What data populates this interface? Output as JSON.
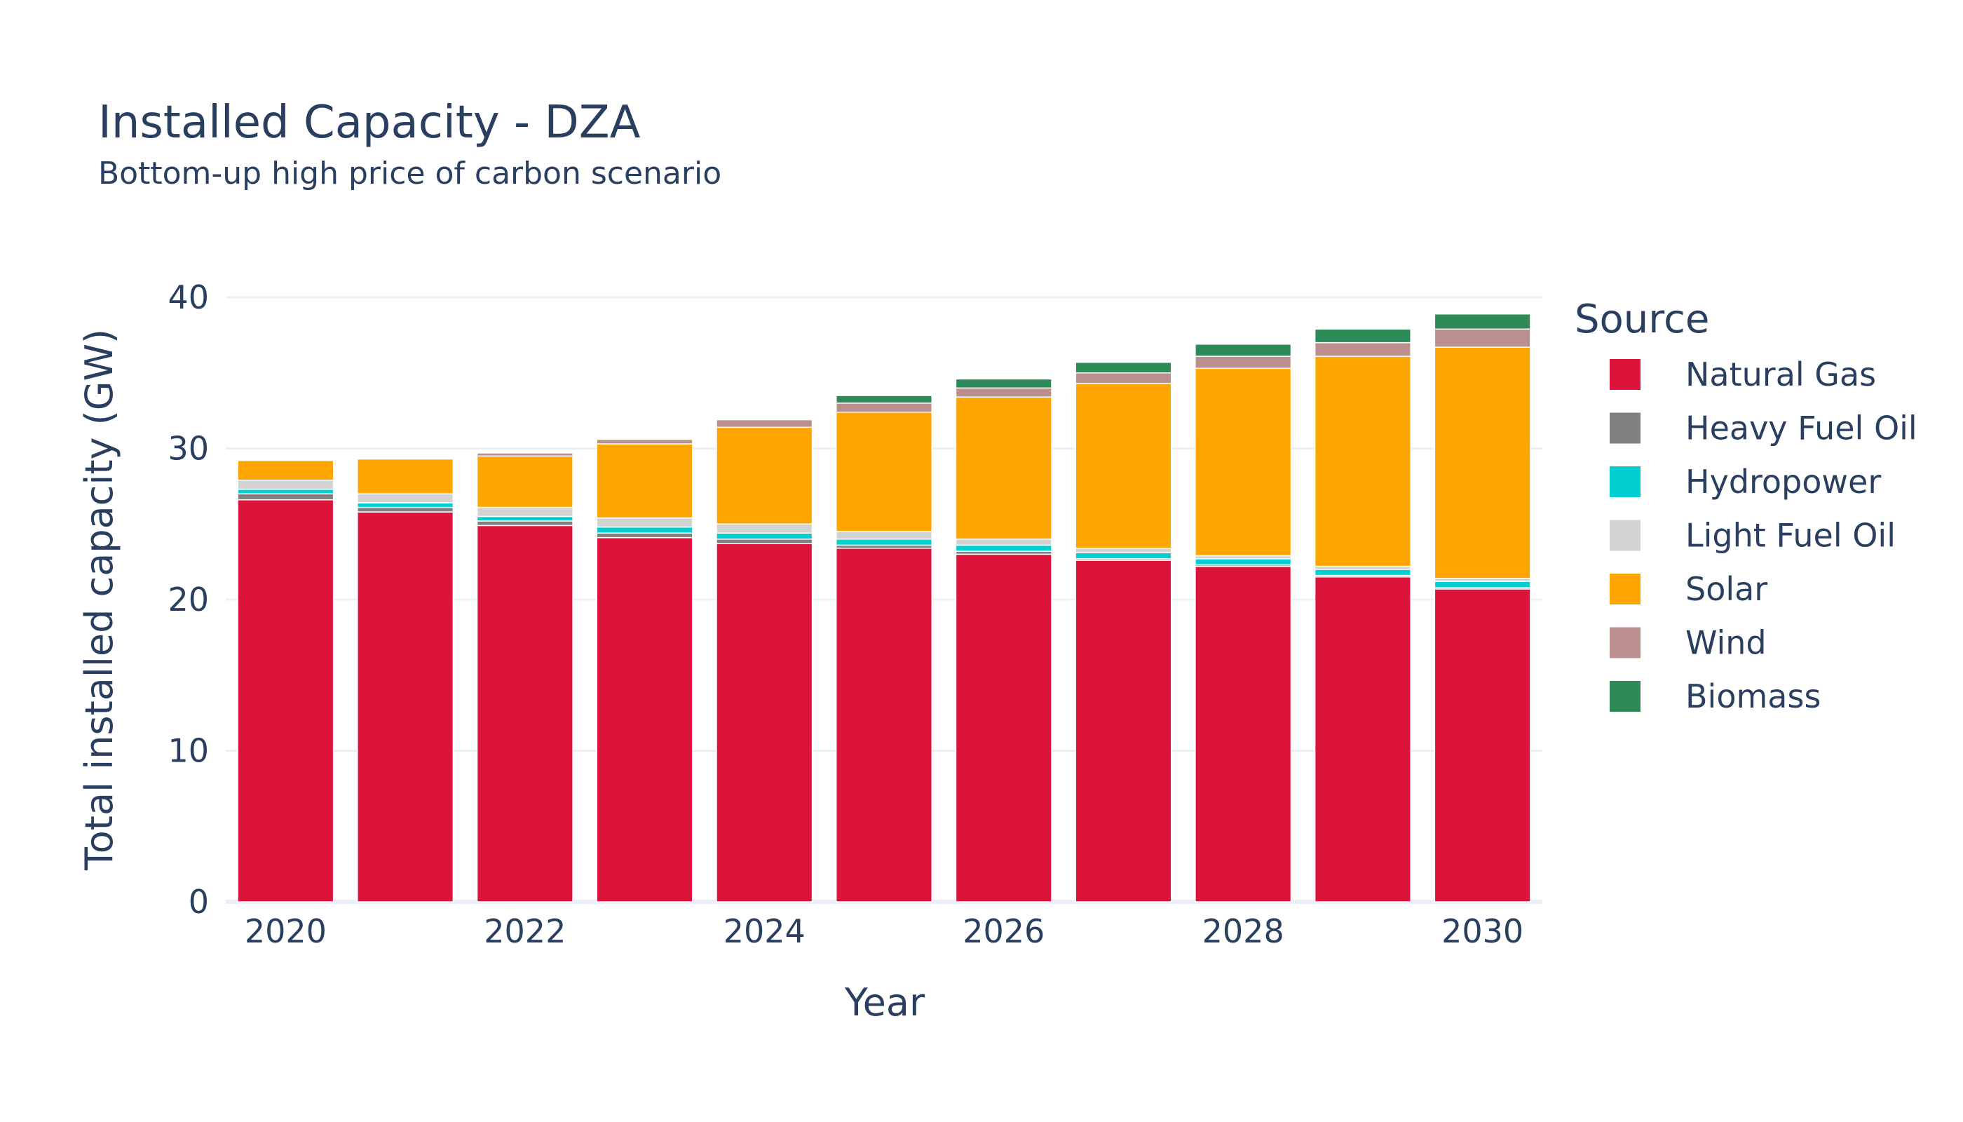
{
  "chart_data": {
    "type": "bar",
    "stacked": true,
    "title": "Installed Capacity - DZA",
    "subtitle": "Bottom-up high price of carbon scenario",
    "xlabel": "Year",
    "ylabel": "Total installed capacity (GW)",
    "ylim": [
      0,
      40
    ],
    "y_ticks": [
      0,
      10,
      20,
      30,
      40
    ],
    "x_ticks": [
      2020,
      2022,
      2024,
      2026,
      2028,
      2030
    ],
    "grid": true,
    "legend_title": "Source",
    "legend_position": "right",
    "categories": [
      2020,
      2021,
      2022,
      2023,
      2024,
      2025,
      2026,
      2027,
      2028,
      2029,
      2030
    ],
    "series": [
      {
        "name": "Natural Gas",
        "color": "#dc143c",
        "values": [
          26.6,
          25.8,
          24.9,
          24.1,
          23.7,
          23.4,
          23.0,
          22.6,
          22.2,
          21.5,
          20.7
        ]
      },
      {
        "name": "Heavy Fuel Oil",
        "color": "#808080",
        "values": [
          0.4,
          0.3,
          0.3,
          0.3,
          0.3,
          0.2,
          0.2,
          0.1,
          0.1,
          0.1,
          0.1
        ]
      },
      {
        "name": "Hydropower",
        "color": "#00ced1",
        "values": [
          0.3,
          0.3,
          0.3,
          0.4,
          0.4,
          0.4,
          0.4,
          0.4,
          0.4,
          0.4,
          0.4
        ]
      },
      {
        "name": "Light Fuel Oil",
        "color": "#d3d3d3",
        "values": [
          0.6,
          0.6,
          0.6,
          0.6,
          0.6,
          0.5,
          0.4,
          0.3,
          0.2,
          0.2,
          0.2
        ]
      },
      {
        "name": "Solar",
        "color": "#ffa500",
        "values": [
          1.3,
          2.3,
          3.4,
          4.9,
          6.4,
          7.9,
          9.4,
          10.9,
          12.4,
          13.9,
          15.3
        ]
      },
      {
        "name": "Wind",
        "color": "#bc8f8f",
        "values": [
          0.0,
          0.0,
          0.2,
          0.3,
          0.5,
          0.6,
          0.6,
          0.7,
          0.8,
          0.9,
          1.2
        ]
      },
      {
        "name": "Biomass",
        "color": "#2e8b57",
        "values": [
          0.0,
          0.0,
          0.0,
          0.0,
          0.0,
          0.5,
          0.6,
          0.7,
          0.8,
          0.9,
          1.0
        ]
      }
    ]
  }
}
